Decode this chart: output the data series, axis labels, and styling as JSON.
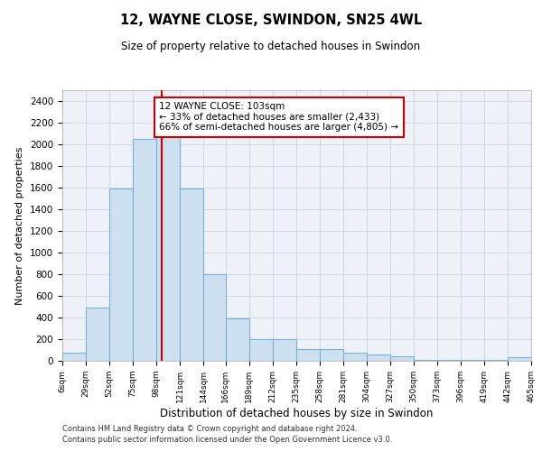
{
  "title": "12, WAYNE CLOSE, SWINDON, SN25 4WL",
  "subtitle": "Size of property relative to detached houses in Swindon",
  "xlabel": "Distribution of detached houses by size in Swindon",
  "ylabel": "Number of detached properties",
  "footnote1": "Contains HM Land Registry data © Crown copyright and database right 2024.",
  "footnote2": "Contains public sector information licensed under the Open Government Licence v3.0.",
  "bar_color": "#cce0f0",
  "bar_edge_color": "#7ab0d4",
  "grid_color": "#d0d8e8",
  "background_color": "#eef2f8",
  "property_line_color": "#cc0000",
  "annotation_box_color": "#cc0000",
  "bins": [
    6,
    29,
    52,
    75,
    98,
    121,
    144,
    166,
    189,
    212,
    235,
    258,
    281,
    304,
    327,
    350,
    373,
    396,
    419,
    442,
    465
  ],
  "counts": [
    75,
    490,
    1590,
    2050,
    2080,
    1590,
    800,
    390,
    200,
    200,
    110,
    110,
    75,
    55,
    40,
    10,
    10,
    10,
    10,
    35
  ],
  "property_size": 103,
  "ylim": [
    0,
    2500
  ],
  "yticks": [
    0,
    200,
    400,
    600,
    800,
    1000,
    1200,
    1400,
    1600,
    1800,
    2000,
    2200,
    2400
  ],
  "annotation_title": "12 WAYNE CLOSE: 103sqm",
  "annotation_line1": "← 33% of detached houses are smaller (2,433)",
  "annotation_line2": "66% of semi-detached houses are larger (4,805) →",
  "tick_labels": [
    "6sqm",
    "29sqm",
    "52sqm",
    "75sqm",
    "98sqm",
    "121sqm",
    "144sqm",
    "166sqm",
    "189sqm",
    "212sqm",
    "235sqm",
    "258sqm",
    "281sqm",
    "304sqm",
    "327sqm",
    "350sqm",
    "373sqm",
    "396sqm",
    "419sqm",
    "442sqm",
    "465sqm"
  ]
}
